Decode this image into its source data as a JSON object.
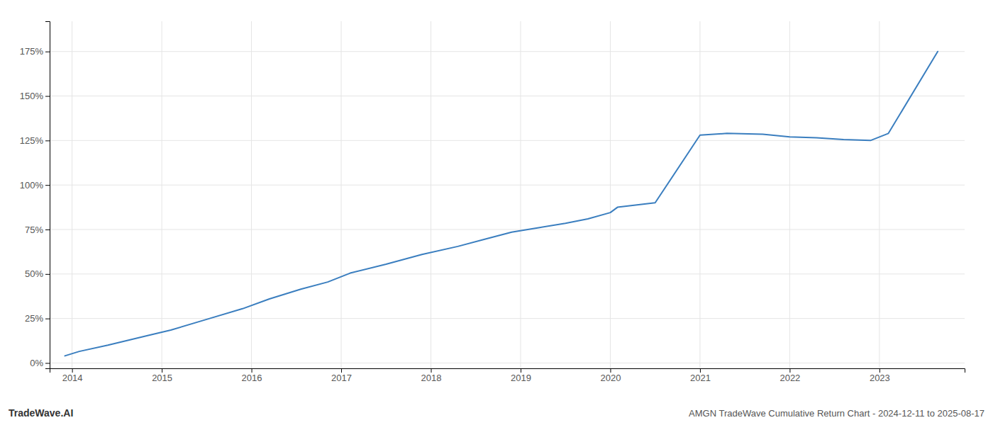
{
  "chart_data": {
    "type": "line",
    "title": "AMGN TradeWave Cumulative Return Chart - 2024-12-11 to 2025-08-17",
    "annotations": [
      "TradeWave.AI"
    ],
    "x": [
      2013.92,
      2014.08,
      2014.4,
      2014.85,
      2015.1,
      2015.5,
      2015.9,
      2016.2,
      2016.55,
      2016.85,
      2017.1,
      2017.5,
      2017.9,
      2018.3,
      2018.6,
      2018.9,
      2019.2,
      2019.5,
      2019.75,
      2020.0,
      2020.08,
      2020.5,
      2021.0,
      2021.3,
      2021.7,
      2022.0,
      2022.3,
      2022.6,
      2022.9,
      2023.1,
      2023.65
    ],
    "values": [
      0.04,
      0.065,
      0.1,
      0.155,
      0.185,
      0.245,
      0.305,
      0.36,
      0.415,
      0.455,
      0.505,
      0.555,
      0.61,
      0.655,
      0.695,
      0.735,
      0.76,
      0.785,
      0.81,
      0.845,
      0.875,
      0.9,
      1.28,
      1.29,
      1.285,
      1.27,
      1.265,
      1.255,
      1.25,
      1.29,
      1.75
    ],
    "color": "#3a7ebf",
    "xlim": [
      2013.75,
      2023.95
    ],
    "xticks": [
      2014,
      2015,
      2016,
      2017,
      2018,
      2019,
      2020,
      2021,
      2022,
      2023
    ],
    "ylim": [
      -0.03,
      1.92
    ],
    "yticks": [
      {
        "value": 0.0,
        "label": "0%"
      },
      {
        "value": 0.25,
        "label": "25%"
      },
      {
        "value": 0.5,
        "label": "50%"
      },
      {
        "value": 0.75,
        "label": "75%"
      },
      {
        "value": 1.0,
        "label": "100%"
      },
      {
        "value": 1.25,
        "label": "125%"
      },
      {
        "value": 1.5,
        "label": "150%"
      },
      {
        "value": 1.75,
        "label": "175%"
      }
    ],
    "grid": true
  }
}
